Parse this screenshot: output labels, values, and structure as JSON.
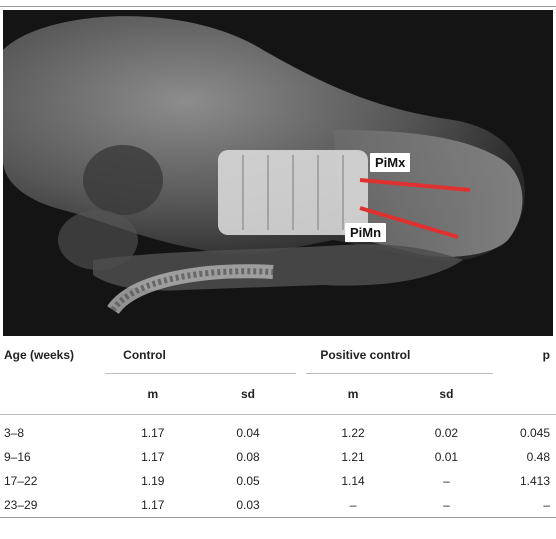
{
  "figure": {
    "labels": {
      "upper": "PiMx",
      "lower": "PiMn"
    },
    "line_color": "#e03030"
  },
  "table": {
    "header": {
      "age": "Age (weeks)",
      "group1": "Control",
      "group2": "Positive control",
      "p": "p",
      "m": "m",
      "sd": "sd"
    },
    "rows": [
      {
        "age": "3–8",
        "c_m": "1.17",
        "c_sd": "0.04",
        "pc_m": "1.22",
        "pc_sd": "0.02",
        "p": "0.045"
      },
      {
        "age": "9–16",
        "c_m": "1.17",
        "c_sd": "0.08",
        "pc_m": "1.21",
        "pc_sd": "0.01",
        "p": "0.48"
      },
      {
        "age": "17–22",
        "c_m": "1.19",
        "c_sd": "0.05",
        "pc_m": "1.14",
        "pc_sd": "–",
        "p": "1.413"
      },
      {
        "age": "23–29",
        "c_m": "1.17",
        "c_sd": "0.03",
        "pc_m": "–",
        "pc_sd": "–",
        "p": "–"
      }
    ]
  }
}
